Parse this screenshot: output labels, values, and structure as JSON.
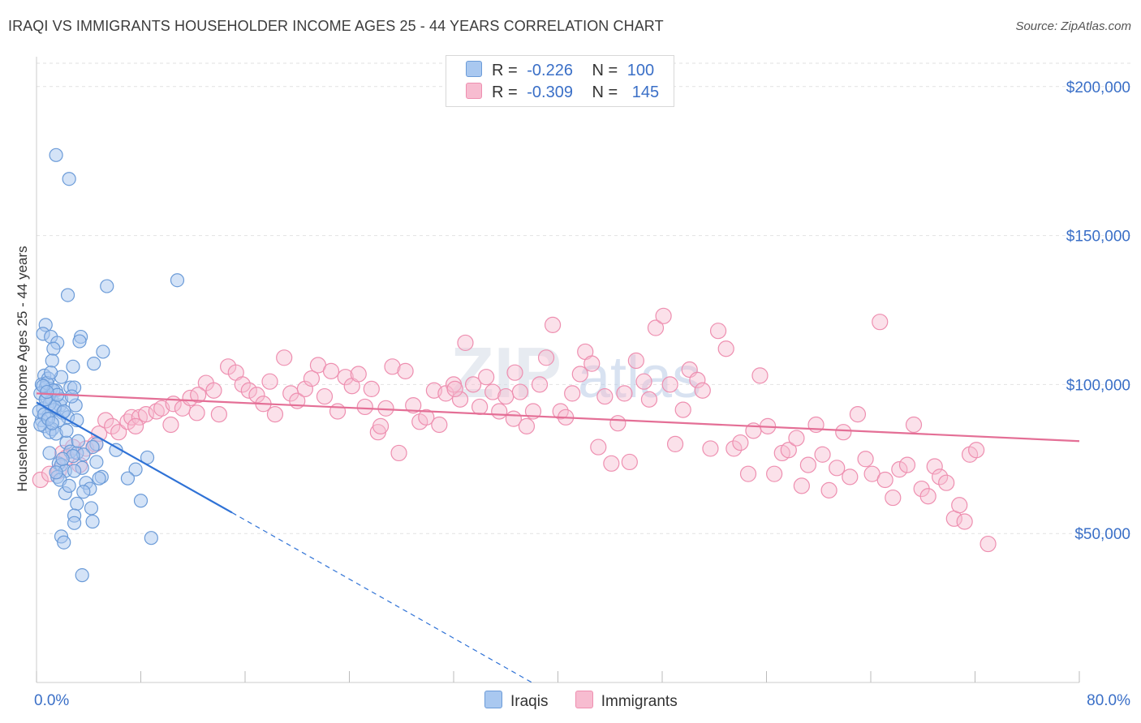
{
  "title": "IRAQI VS IMMIGRANTS HOUSEHOLDER INCOME AGES 25 - 44 YEARS CORRELATION CHART",
  "source": "Source: ZipAtlas.com",
  "watermark": {
    "zip": "ZIP",
    "atlas": "atlas"
  },
  "legend": {
    "iraqis": {
      "r_label": "R =",
      "r_value": "-0.226",
      "n_label": "N =",
      "n_value": "100"
    },
    "immigrants": {
      "r_label": "R =",
      "r_value": "-0.309",
      "n_label": "N =",
      "n_value": "145"
    }
  },
  "bottom_legend": {
    "iraqis": "Iraqis",
    "immigrants": "Immigrants"
  },
  "colors": {
    "iraqis_fill": "#a9c8f0",
    "iraqis_stroke": "#6b9bd8",
    "iraqis_line": "#2f72d6",
    "immigrants_fill": "#f7bcd0",
    "immigrants_stroke": "#ee8fb0",
    "immigrants_line": "#e46f96",
    "grid": "#e2e2e2",
    "axis_text": "#3a6fc7"
  },
  "chart_data": {
    "type": "scatter",
    "title": "IRAQI VS IMMIGRANTS HOUSEHOLDER INCOME AGES 25 - 44 YEARS CORRELATION CHART",
    "xlabel": "",
    "ylabel": "Householder Income Ages 25 - 44 years",
    "xlim": [
      0,
      80
    ],
    "ylim": [
      0,
      210000
    ],
    "x_tick_labels": [
      "0.0%",
      "80.0%"
    ],
    "y_ticks": [
      50000,
      100000,
      150000,
      200000
    ],
    "y_tick_labels": [
      "$50,000",
      "$100,000",
      "$150,000",
      "$200,000"
    ],
    "grid": true,
    "legend_position": "top-center",
    "series": [
      {
        "name": "Iraqis",
        "trend": {
          "x": [
            0,
            15
          ],
          "y": [
            94000,
            57000
          ],
          "dashed_to": [
            38,
            0
          ]
        },
        "points": [
          [
            1.5,
            177000
          ],
          [
            2.5,
            169000
          ],
          [
            10.8,
            135000
          ],
          [
            5.4,
            133000
          ],
          [
            2.4,
            130000
          ],
          [
            0.7,
            120000
          ],
          [
            0.5,
            117000
          ],
          [
            1.1,
            116000
          ],
          [
            3.4,
            116000
          ],
          [
            1.6,
            114000
          ],
          [
            1.3,
            112000
          ],
          [
            5.1,
            111000
          ],
          [
            3.3,
            114500
          ],
          [
            1.2,
            108000
          ],
          [
            2.8,
            106000
          ],
          [
            4.4,
            107000
          ],
          [
            0.6,
            103000
          ],
          [
            0.9,
            102000
          ],
          [
            1.9,
            102500
          ],
          [
            0.4,
            100000
          ],
          [
            0.7,
            99000
          ],
          [
            1.1,
            98500
          ],
          [
            1.5,
            98000
          ],
          [
            2.6,
            99000
          ],
          [
            2.9,
            99000
          ],
          [
            0.3,
            97000
          ],
          [
            0.8,
            95500
          ],
          [
            1.2,
            94500
          ],
          [
            1.8,
            93000
          ],
          [
            3.0,
            93000
          ],
          [
            0.5,
            92000
          ],
          [
            1.4,
            91500
          ],
          [
            2.0,
            90500
          ],
          [
            0.9,
            89500
          ],
          [
            2.4,
            89000
          ],
          [
            0.4,
            88000
          ],
          [
            1.7,
            88000
          ],
          [
            3.1,
            88000
          ],
          [
            0.6,
            86000
          ],
          [
            1.2,
            85000
          ],
          [
            1.0,
            84000
          ],
          [
            1.5,
            83500
          ],
          [
            4.6,
            80000
          ],
          [
            2.3,
            80500
          ],
          [
            4.3,
            79000
          ],
          [
            6.1,
            78000
          ],
          [
            2.6,
            77500
          ],
          [
            1.0,
            77000
          ],
          [
            3.1,
            77000
          ],
          [
            3.6,
            76500
          ],
          [
            2.8,
            76000
          ],
          [
            8.5,
            75500
          ],
          [
            4.6,
            74000
          ],
          [
            1.7,
            73500
          ],
          [
            1.9,
            73000
          ],
          [
            3.5,
            72000
          ],
          [
            7.6,
            71500
          ],
          [
            2.2,
            71000
          ],
          [
            2.9,
            71000
          ],
          [
            1.6,
            69000
          ],
          [
            5.0,
            69000
          ],
          [
            4.8,
            68500
          ],
          [
            7.0,
            68500
          ],
          [
            1.8,
            68000
          ],
          [
            3.8,
            67000
          ],
          [
            4.1,
            65000
          ],
          [
            3.6,
            64000
          ],
          [
            2.2,
            63500
          ],
          [
            8.0,
            61000
          ],
          [
            4.2,
            58500
          ],
          [
            3.1,
            60000
          ],
          [
            2.9,
            56000
          ],
          [
            4.3,
            54000
          ],
          [
            2.9,
            53500
          ],
          [
            1.9,
            49000
          ],
          [
            8.8,
            48500
          ],
          [
            2.1,
            47000
          ],
          [
            3.5,
            36000
          ],
          [
            0.8,
            100500
          ],
          [
            1.3,
            98000
          ],
          [
            0.2,
            91000
          ],
          [
            0.6,
            90000
          ],
          [
            1.9,
            95000
          ],
          [
            2.7,
            96000
          ],
          [
            1.0,
            93500
          ],
          [
            0.3,
            86500
          ],
          [
            1.4,
            92500
          ],
          [
            2.1,
            91000
          ],
          [
            0.5,
            99500
          ],
          [
            1.6,
            96500
          ],
          [
            2.3,
            84500
          ],
          [
            1.1,
            104000
          ],
          [
            0.7,
            95000
          ],
          [
            0.9,
            88500
          ],
          [
            1.2,
            87000
          ],
          [
            2.0,
            75000
          ],
          [
            3.2,
            81000
          ],
          [
            1.5,
            70500
          ],
          [
            2.5,
            66000
          ],
          [
            0.8,
            97500
          ]
        ]
      },
      {
        "name": "Immigrants",
        "trend": {
          "x": [
            0,
            80
          ],
          "y": [
            97000,
            81000
          ]
        },
        "points": [
          [
            0.3,
            68000
          ],
          [
            1.0,
            70000
          ],
          [
            1.7,
            71000
          ],
          [
            2.0,
            77000
          ],
          [
            2.3,
            75500
          ],
          [
            2.8,
            79000
          ],
          [
            3.3,
            73000
          ],
          [
            3.8,
            78500
          ],
          [
            4.5,
            80000
          ],
          [
            4.8,
            83500
          ],
          [
            5.3,
            88000
          ],
          [
            5.8,
            86000
          ],
          [
            6.3,
            84000
          ],
          [
            7.0,
            87500
          ],
          [
            7.3,
            89000
          ],
          [
            7.9,
            89000
          ],
          [
            8.4,
            90000
          ],
          [
            9.2,
            91000
          ],
          [
            9.6,
            92000
          ],
          [
            10.3,
            86500
          ],
          [
            10.5,
            93500
          ],
          [
            11.2,
            92000
          ],
          [
            11.8,
            95500
          ],
          [
            12.3,
            90500
          ],
          [
            13.0,
            100500
          ],
          [
            13.6,
            98000
          ],
          [
            14.0,
            90000
          ],
          [
            14.7,
            106000
          ],
          [
            15.3,
            104000
          ],
          [
            15.8,
            100000
          ],
          [
            16.3,
            98000
          ],
          [
            16.9,
            96500
          ],
          [
            17.4,
            93500
          ],
          [
            17.9,
            101000
          ],
          [
            18.3,
            90000
          ],
          [
            19.0,
            109000
          ],
          [
            19.5,
            97000
          ],
          [
            20.0,
            94500
          ],
          [
            20.6,
            98500
          ],
          [
            21.1,
            102000
          ],
          [
            21.6,
            106500
          ],
          [
            22.1,
            96000
          ],
          [
            22.6,
            104500
          ],
          [
            23.1,
            91000
          ],
          [
            23.7,
            102500
          ],
          [
            24.2,
            99500
          ],
          [
            24.7,
            103500
          ],
          [
            25.2,
            92500
          ],
          [
            25.7,
            98500
          ],
          [
            26.2,
            84000
          ],
          [
            26.8,
            92000
          ],
          [
            27.3,
            106000
          ],
          [
            27.8,
            77000
          ],
          [
            28.3,
            104500
          ],
          [
            28.9,
            93000
          ],
          [
            29.4,
            87500
          ],
          [
            29.9,
            89000
          ],
          [
            30.5,
            98000
          ],
          [
            30.9,
            86500
          ],
          [
            31.4,
            97000
          ],
          [
            32.0,
            100000
          ],
          [
            32.5,
            95000
          ],
          [
            32.9,
            114000
          ],
          [
            33.5,
            100000
          ],
          [
            34.0,
            92500
          ],
          [
            34.5,
            102500
          ],
          [
            35.0,
            97500
          ],
          [
            35.5,
            91000
          ],
          [
            36.0,
            96000
          ],
          [
            36.6,
            88500
          ],
          [
            37.1,
            97500
          ],
          [
            37.6,
            86000
          ],
          [
            38.1,
            91000
          ],
          [
            38.6,
            100000
          ],
          [
            39.1,
            109000
          ],
          [
            39.6,
            120000
          ],
          [
            40.2,
            91000
          ],
          [
            40.6,
            89000
          ],
          [
            41.1,
            97000
          ],
          [
            41.7,
            103500
          ],
          [
            42.1,
            111000
          ],
          [
            42.6,
            107000
          ],
          [
            43.1,
            79000
          ],
          [
            43.6,
            96000
          ],
          [
            44.1,
            73500
          ],
          [
            44.6,
            87000
          ],
          [
            45.1,
            97000
          ],
          [
            45.5,
            74000
          ],
          [
            46.0,
            108000
          ],
          [
            46.6,
            101000
          ],
          [
            47.0,
            95000
          ],
          [
            47.5,
            119000
          ],
          [
            48.1,
            123000
          ],
          [
            48.6,
            100000
          ],
          [
            49.0,
            80000
          ],
          [
            49.6,
            91500
          ],
          [
            50.1,
            105000
          ],
          [
            50.7,
            101500
          ],
          [
            51.1,
            98000
          ],
          [
            51.7,
            78500
          ],
          [
            52.3,
            118000
          ],
          [
            52.9,
            112000
          ],
          [
            53.5,
            78500
          ],
          [
            54.0,
            80500
          ],
          [
            54.6,
            70000
          ],
          [
            55.0,
            84500
          ],
          [
            55.5,
            103000
          ],
          [
            56.1,
            86000
          ],
          [
            56.6,
            70000
          ],
          [
            57.2,
            77000
          ],
          [
            57.7,
            78000
          ],
          [
            58.3,
            82000
          ],
          [
            58.7,
            66000
          ],
          [
            59.2,
            73000
          ],
          [
            59.8,
            86500
          ],
          [
            60.3,
            76500
          ],
          [
            60.8,
            64500
          ],
          [
            61.4,
            72000
          ],
          [
            61.9,
            84000
          ],
          [
            62.4,
            69000
          ],
          [
            63.0,
            90000
          ],
          [
            63.6,
            75000
          ],
          [
            64.1,
            70000
          ],
          [
            64.7,
            121000
          ],
          [
            65.1,
            68000
          ],
          [
            65.7,
            62000
          ],
          [
            66.2,
            71500
          ],
          [
            66.8,
            73000
          ],
          [
            67.3,
            86500
          ],
          [
            67.9,
            65000
          ],
          [
            68.4,
            62500
          ],
          [
            68.9,
            72500
          ],
          [
            69.3,
            69000
          ],
          [
            69.8,
            67000
          ],
          [
            70.4,
            55000
          ],
          [
            70.8,
            59500
          ],
          [
            71.2,
            54000
          ],
          [
            71.6,
            76500
          ],
          [
            72.1,
            78000
          ],
          [
            73.0,
            46500
          ],
          [
            7.6,
            86000
          ],
          [
            12.4,
            96500
          ],
          [
            26.4,
            86000
          ],
          [
            32.1,
            98500
          ],
          [
            36.7,
            104000
          ]
        ]
      }
    ]
  }
}
